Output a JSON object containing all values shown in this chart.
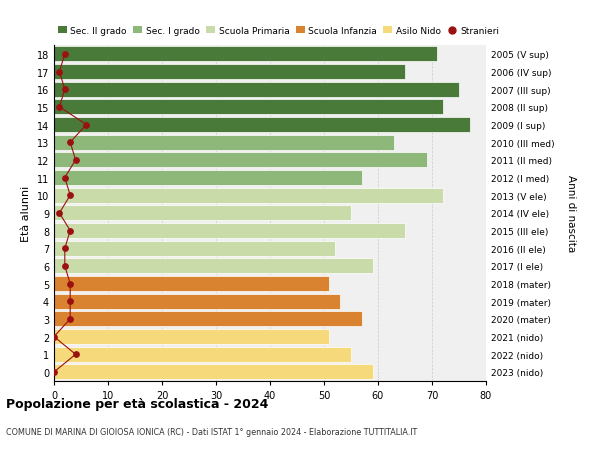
{
  "ages": [
    0,
    1,
    2,
    3,
    4,
    5,
    6,
    7,
    8,
    9,
    10,
    11,
    12,
    13,
    14,
    15,
    16,
    17,
    18
  ],
  "bar_values": [
    59,
    55,
    51,
    57,
    53,
    51,
    59,
    52,
    65,
    55,
    72,
    57,
    69,
    63,
    77,
    72,
    75,
    65,
    71
  ],
  "bar_colors": [
    "#f5d97a",
    "#f5d97a",
    "#f5d97a",
    "#d98230",
    "#d98230",
    "#d98230",
    "#c8dba8",
    "#c8dba8",
    "#c8dba8",
    "#c8dba8",
    "#c8dba8",
    "#8db87a",
    "#8db87a",
    "#8db87a",
    "#4a7a3a",
    "#4a7a3a",
    "#4a7a3a",
    "#4a7a3a",
    "#4a7a3a"
  ],
  "stranieri_values": [
    0,
    4,
    0,
    3,
    3,
    3,
    2,
    2,
    3,
    1,
    3,
    2,
    4,
    3,
    6,
    1,
    2,
    1,
    2
  ],
  "right_labels": [
    "2023 (nido)",
    "2022 (nido)",
    "2021 (nido)",
    "2020 (mater)",
    "2019 (mater)",
    "2018 (mater)",
    "2017 (I ele)",
    "2016 (II ele)",
    "2015 (III ele)",
    "2014 (IV ele)",
    "2013 (V ele)",
    "2012 (I med)",
    "2011 (II med)",
    "2010 (III med)",
    "2009 (I sup)",
    "2008 (II sup)",
    "2007 (III sup)",
    "2006 (IV sup)",
    "2005 (V sup)"
  ],
  "legend_labels": [
    "Sec. II grado",
    "Sec. I grado",
    "Scuola Primaria",
    "Scuola Infanzia",
    "Asilo Nido",
    "Stranieri"
  ],
  "legend_colors": [
    "#4a7a3a",
    "#8db87a",
    "#c8dba8",
    "#d98230",
    "#f5d97a",
    "#9b1010"
  ],
  "ylabel": "Età alunni",
  "title": "Popolazione per età scolastica - 2024",
  "subtitle": "COMUNE DI MARINA DI GIOIOSA IONICA (RC) - Dati ISTAT 1° gennaio 2024 - Elaborazione TUTTITALIA.IT",
  "xlim": [
    0,
    80
  ],
  "xticks": [
    0,
    10,
    20,
    30,
    40,
    50,
    60,
    70,
    80
  ],
  "right_ylabel": "Anni di nascita",
  "stranieri_color": "#9b1010",
  "bg_color": "#ffffff",
  "plot_bg_color": "#f0f0f0",
  "grid_color": "#cccccc",
  "bar_height": 0.85
}
